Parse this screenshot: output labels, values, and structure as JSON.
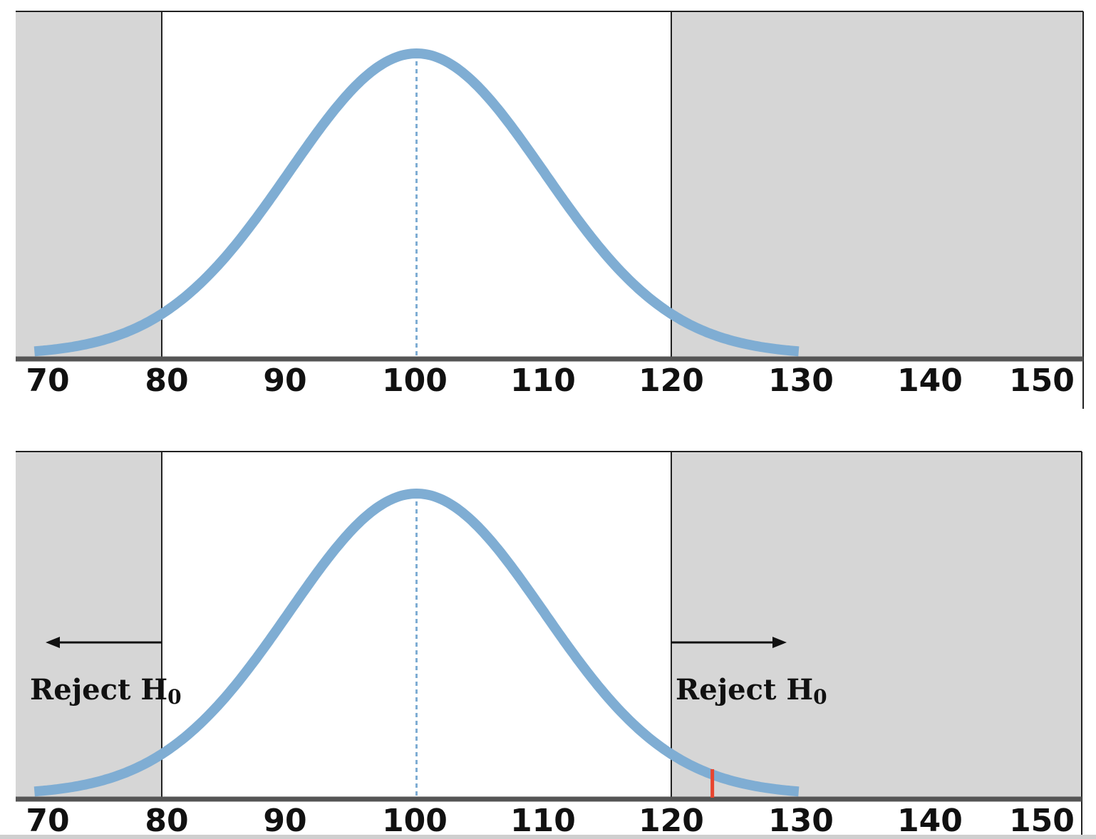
{
  "colors": {
    "reject_region": "#d6d6d6",
    "curve": "#7fadd3",
    "axis": "#555555",
    "mean_line": "#7fadd3",
    "observed_marker": "#e8452f"
  },
  "chart_data": [
    {
      "type": "area",
      "distribution": "normal",
      "mean": 100,
      "sd": 10,
      "xlim": [
        70,
        150
      ],
      "curve_range": [
        70,
        130
      ],
      "x_ticks": [
        70,
        80,
        90,
        100,
        110,
        120,
        130,
        140,
        150
      ],
      "tick_labels": [
        "70",
        "80",
        "90",
        "100",
        "110",
        "120",
        "130",
        "140",
        "150"
      ],
      "critical_values": [
        80,
        120
      ],
      "rejection_regions": [],
      "observed_value": null
    },
    {
      "type": "area",
      "distribution": "normal",
      "mean": 100,
      "sd": 10,
      "xlim": [
        70,
        150
      ],
      "curve_range": [
        70,
        130
      ],
      "x_ticks": [
        70,
        80,
        90,
        100,
        110,
        120,
        130,
        140,
        150
      ],
      "tick_labels": [
        "70",
        "80",
        "90",
        "100",
        "110",
        "120",
        "130",
        "140",
        "150"
      ],
      "critical_values": [
        80,
        120
      ],
      "rejection_regions": [
        {
          "side": "left",
          "label": "Reject H",
          "subscript": "0",
          "direction": "left"
        },
        {
          "side": "right",
          "label": "Reject H",
          "subscript": "0",
          "direction": "right"
        }
      ],
      "observed_value": 123
    }
  ]
}
